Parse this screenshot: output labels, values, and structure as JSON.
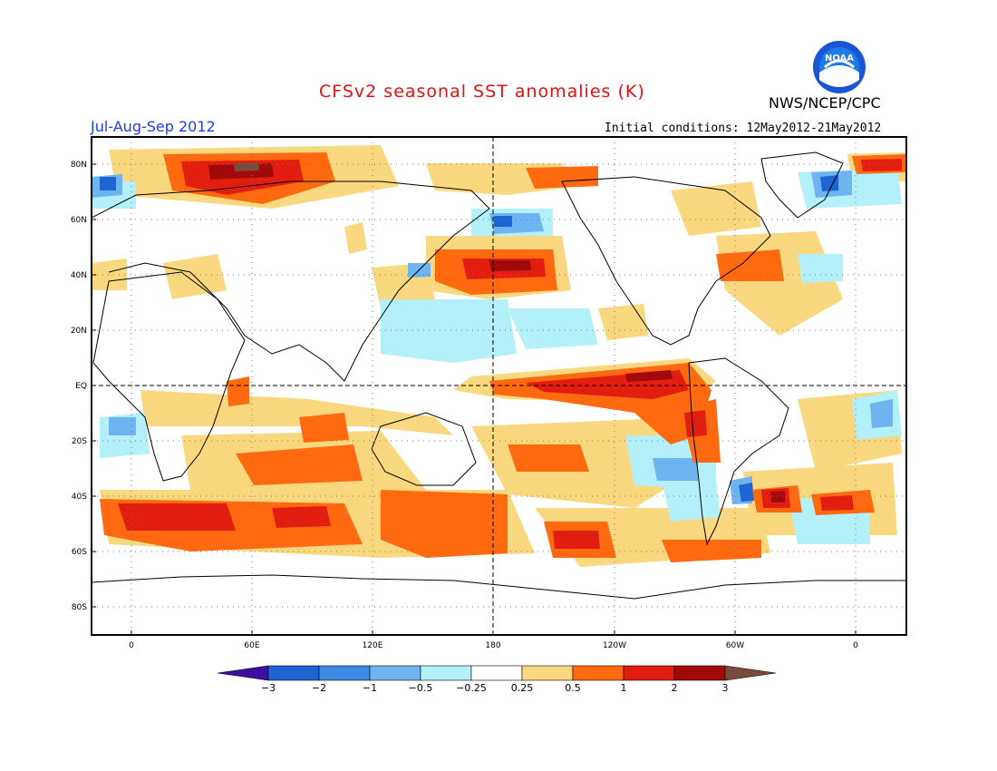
{
  "header": {
    "title": "CFSv2 seasonal SST anomalies (K)",
    "agency": "NWS/NCEP/CPC",
    "season": "Jul-Aug-Sep 2012",
    "initial_conditions": "Initial conditions: 12May2012-21May2012",
    "logo_text": "NOAA"
  },
  "map": {
    "lat_labels": [
      "80N",
      "60N",
      "40N",
      "20N",
      "EQ",
      "20S",
      "40S",
      "60S",
      "80S"
    ],
    "lon_labels": [
      "0",
      "60E",
      "120E",
      "180",
      "120W",
      "60W",
      "0"
    ],
    "dateline_label": "180",
    "equator_label": "EQ"
  },
  "colorbar": {
    "labels": [
      "-3",
      "-2",
      "-1",
      "-0.5",
      "-0.25",
      "0.25",
      "0.5",
      "1",
      "2",
      "3"
    ],
    "colors": [
      "#3b0fa0",
      "#1e64d2",
      "#3c8ce6",
      "#6eb4f0",
      "#b4f0fa",
      "#ffffff",
      "#fad880",
      "#ff6a10",
      "#e21e10",
      "#a00a0a",
      "#7a4a3a"
    ]
  },
  "palette": {
    "strong_warm": "#a00a0a",
    "warm": "#e21e10",
    "orange": "#ff6a10",
    "light_warm": "#fad880",
    "light_cool": "#b4f0fa",
    "cool": "#6eb4f0",
    "mid_cool": "#3c8ce6",
    "strong_cool": "#1e64d2"
  }
}
